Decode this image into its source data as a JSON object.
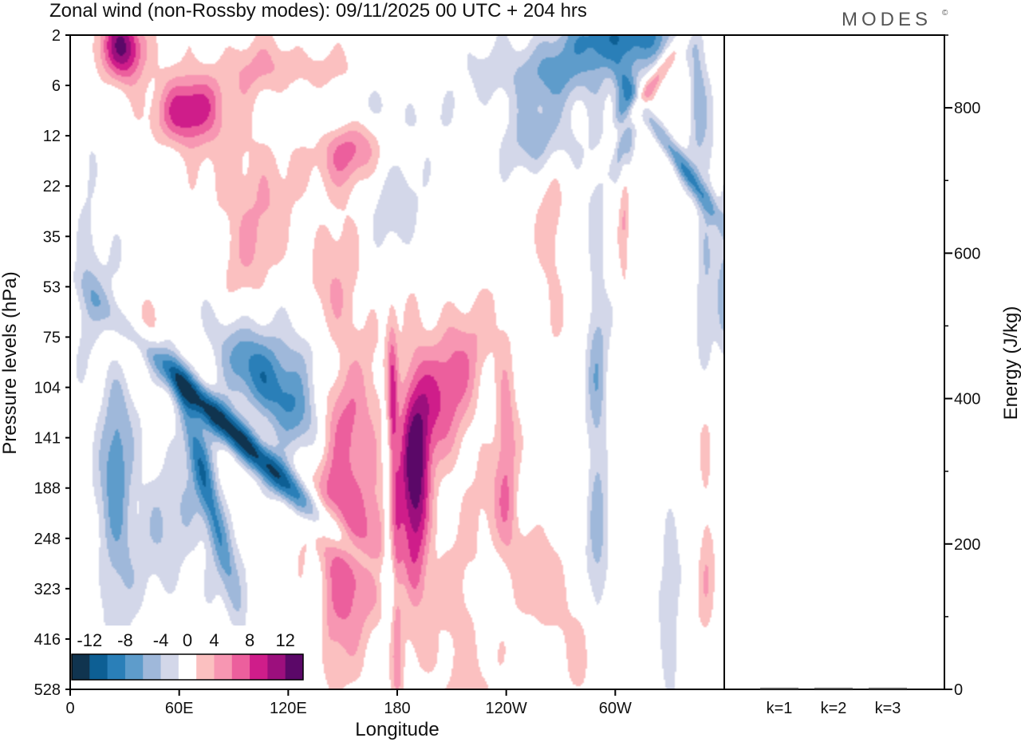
{
  "title": "Zonal wind (non-Rossby modes):  09/11/2025  00 UTC  + 204 hrs",
  "logo": "MODES",
  "logo_mark": "©",
  "chart_data": [
    {
      "type": "heatmap",
      "xlabel": "Longitude",
      "ylabel": "Pressure levels (hPa)",
      "x_ticks": [
        "0",
        "60E",
        "120E",
        "180",
        "120W",
        "60W"
      ],
      "x_tick_lons": [
        0,
        60,
        120,
        180,
        240,
        300
      ],
      "xlim": [
        0,
        360
      ],
      "y_ticks": [
        "2",
        "6",
        "12",
        "22",
        "35",
        "53",
        "75",
        "104",
        "141",
        "188",
        "248",
        "323",
        "416",
        "528"
      ],
      "y_order": "top-to-bottom",
      "colorbar": {
        "labels": [
          "-12",
          "-8",
          "-4",
          "0",
          "4",
          "8",
          "12"
        ],
        "bounds": [
          -14,
          -12,
          -10,
          -8,
          -6,
          -4,
          -2,
          2,
          4,
          6,
          8,
          10,
          12,
          14
        ],
        "colors": [
          "#10344f",
          "#0d5f94",
          "#2a7fb8",
          "#5e9ccb",
          "#9fb8da",
          "#d3d7e9",
          "#ffffff",
          "#fbc0c0",
          "#f796b2",
          "#ec5f9d",
          "#cf1d8a",
          "#9c0f7d",
          "#5b0868"
        ]
      },
      "features": [
        {
          "lon": 92,
          "lev": 140,
          "u": -13,
          "sx": 9,
          "sy": 2.6,
          "rot": 35
        },
        {
          "lon": 110,
          "lev": 104,
          "u": -9,
          "sx": 18,
          "sy": 1.6,
          "rot": 28
        },
        {
          "lon": 75,
          "lev": 188,
          "u": -8,
          "sx": 6,
          "sy": 2.8,
          "rot": 10
        },
        {
          "lon": 130,
          "lev": 85,
          "u": -5,
          "sx": 22,
          "sy": 1.0,
          "rot": 14
        },
        {
          "lon": 25,
          "lev": 175,
          "u": -6,
          "sx": 9,
          "sy": 3.2,
          "rot": 0
        },
        {
          "lon": 175,
          "lev": 188,
          "u": -6,
          "sx": 3,
          "sy": 2.0,
          "rot": 0
        },
        {
          "lon": 148,
          "lev": 160,
          "u": 7,
          "sx": 18,
          "sy": 4.2,
          "rot": 0
        },
        {
          "lon": 190,
          "lev": 188,
          "u": 11,
          "sx": 8,
          "sy": 2.2,
          "rot": 0
        },
        {
          "lon": 177,
          "lev": 120,
          "u": 8,
          "sx": 3,
          "sy": 1.8,
          "rot": 0
        },
        {
          "lon": 205,
          "lev": 104,
          "u": 7,
          "sx": 20,
          "sy": 1.6,
          "rot": -10
        },
        {
          "lon": 240,
          "lev": 141,
          "u": 5,
          "sx": 6,
          "sy": 2.2,
          "rot": 0
        },
        {
          "lon": 165,
          "lev": 248,
          "u": 3.5,
          "sx": 24,
          "sy": 2.2,
          "rot": 0
        },
        {
          "lon": 40,
          "lev": 75,
          "u": 3.5,
          "sx": 24,
          "sy": 0.8,
          "rot": 0
        },
        {
          "lon": 29,
          "lev": 3,
          "u": 13,
          "sx": 12,
          "sy": 0.7,
          "rot": 0
        },
        {
          "lon": 65,
          "lev": 9,
          "u": 11,
          "sx": 16,
          "sy": 0.7,
          "rot": -8
        },
        {
          "lon": 155,
          "lev": 14,
          "u": 8,
          "sx": 16,
          "sy": 0.8,
          "rot": -10
        },
        {
          "lon": 120,
          "lev": 5,
          "u": 4,
          "sx": 40,
          "sy": 0.6,
          "rot": -14
        },
        {
          "lon": 265,
          "lev": 5,
          "u": -6,
          "sx": 38,
          "sy": 0.7,
          "rot": 8
        },
        {
          "lon": 305,
          "lev": 2,
          "u": -9,
          "sx": 30,
          "sy": 0.6,
          "rot": 0
        },
        {
          "lon": 305,
          "lev": 11,
          "u": -10,
          "sx": 5,
          "sy": 1.1,
          "rot": 0
        },
        {
          "lon": 335,
          "lev": 17,
          "u": -7,
          "sx": 5,
          "sy": 1.6,
          "rot": 25
        },
        {
          "lon": 155,
          "lev": 9,
          "u": -4.5,
          "sx": 40,
          "sy": 0.6,
          "rot": -12
        },
        {
          "lon": 175,
          "lev": 26,
          "u": -3.5,
          "sx": 18,
          "sy": 1.0,
          "rot": 0
        },
        {
          "lon": 260,
          "lev": 13,
          "u": -5,
          "sx": 22,
          "sy": 0.7,
          "rot": 0
        },
        {
          "lon": 265,
          "lev": 38,
          "u": 3.5,
          "sx": 8,
          "sy": 1.8,
          "rot": 0
        },
        {
          "lon": 305,
          "lev": 24,
          "u": 4.5,
          "sx": 3,
          "sy": 2.2,
          "rot": 0
        },
        {
          "lon": 320,
          "lev": 6,
          "u": 6,
          "sx": 5,
          "sy": 1.6,
          "rot": -25
        },
        {
          "lon": 350,
          "lev": 45,
          "u": -4,
          "sx": 6,
          "sy": 3.0,
          "rot": 0
        },
        {
          "lon": 345,
          "lev": 6,
          "u": -4.5,
          "sx": 5,
          "sy": 1.4,
          "rot": 0
        },
        {
          "lon": 10,
          "lev": 48,
          "u": -3.5,
          "sx": 8,
          "sy": 2.4,
          "rot": 0
        },
        {
          "lon": 99,
          "lev": 28,
          "u": 4,
          "sx": 24,
          "sy": 2.2,
          "rot": 0
        },
        {
          "lon": 215,
          "lev": 480,
          "u": 3.5,
          "sx": 16,
          "sy": 2.8,
          "rot": 0
        },
        {
          "lon": 260,
          "lev": 316,
          "u": 3.5,
          "sx": 16,
          "sy": 2.6,
          "rot": 20
        },
        {
          "lon": 290,
          "lev": 136,
          "u": -5,
          "sx": 6,
          "sy": 5.2,
          "rot": 0
        },
        {
          "lon": 350,
          "lev": 225,
          "u": 3.5,
          "sx": 5,
          "sy": 2.8,
          "rot": 0
        },
        {
          "lon": 330,
          "lev": 400,
          "u": -3.5,
          "sx": 6,
          "sy": 2.8,
          "rot": 0
        },
        {
          "lon": 135,
          "lev": 480,
          "u": -3.5,
          "sx": 5,
          "sy": 3.0,
          "rot": 0
        },
        {
          "lon": 180,
          "lev": 420,
          "u": 3.5,
          "sx": 3,
          "sy": 3.0,
          "rot": 0
        },
        {
          "lon": 55,
          "lev": 225,
          "u": -3.5,
          "sx": 30,
          "sy": 1.8,
          "rot": 0
        },
        {
          "lon": 360,
          "lev": 53,
          "u": -4,
          "sx": 4,
          "sy": 2.2,
          "rot": 0
        }
      ]
    },
    {
      "type": "bar",
      "ylabel": "Energy (J/kg)",
      "categories": [
        "k=1",
        "k=2",
        "k=3"
      ],
      "values": [
        0,
        0,
        0
      ],
      "ylim": [
        0,
        900
      ],
      "y_ticks": [
        0,
        200,
        400,
        600,
        800
      ],
      "y_minor_ticks": [
        100,
        300,
        500,
        700,
        900
      ]
    }
  ]
}
